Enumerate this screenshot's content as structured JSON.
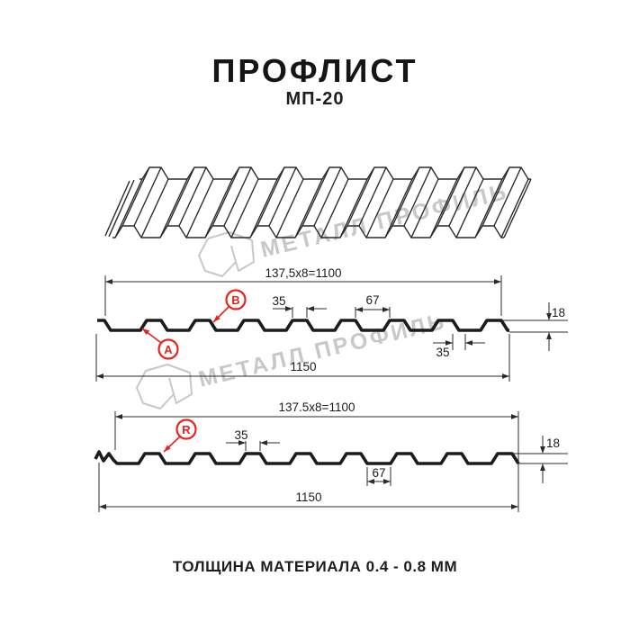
{
  "header": {
    "title": "ПРОФЛИСТ",
    "subtitle": "МП-20"
  },
  "watermark": {
    "text": "МЕТАЛЛ ПРОФИЛЬ"
  },
  "profile1": {
    "labels": {
      "a": "A",
      "b": "B"
    },
    "dims": {
      "working_width": "137,5x8=1100",
      "rib_top_width": "35",
      "rib_spacing": "67",
      "rib_bottom_width": "35",
      "profile_height": "18",
      "total_width": "1150"
    }
  },
  "profile2": {
    "labels": {
      "r": "R"
    },
    "dims": {
      "working_width": "137.5x8=1100",
      "rib_top_width": "35",
      "valley_bottom_width": "67",
      "profile_height": "18",
      "total_width": "1150"
    }
  },
  "footer": {
    "caption": "ТОЛЩИНА МАТЕРИАЛА 0.4 - 0.8 ММ"
  },
  "colors": {
    "line": "#1c1c1c",
    "dim": "#2a2a2a",
    "red": "#e8231b",
    "watermark": "#c8c8c8"
  }
}
